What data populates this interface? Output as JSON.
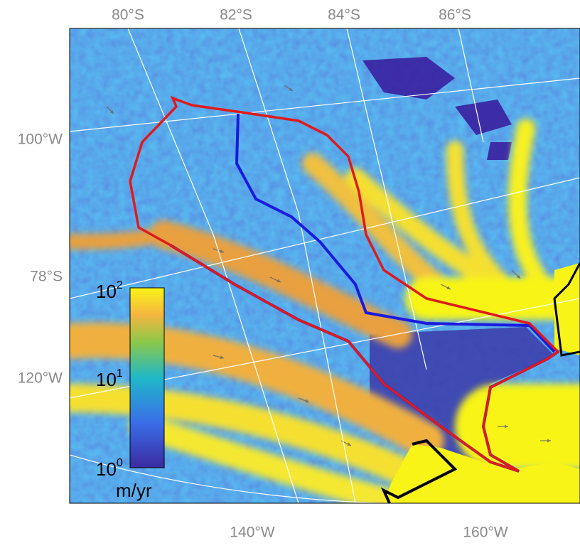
{
  "map": {
    "top_labels": [
      "80°S",
      "82°S",
      "84°S",
      "86°S"
    ],
    "left_labels": [
      "100°W",
      "78°S",
      "120°W"
    ],
    "bottom_labels": [
      "140°W",
      "160°W"
    ],
    "colorbar": {
      "ticks": [
        {
          "base": "10",
          "exponent": "2"
        },
        {
          "base": "10",
          "exponent": "1"
        },
        {
          "base": "10",
          "exponent": "0"
        }
      ],
      "unit": "m/yr"
    }
  }
}
